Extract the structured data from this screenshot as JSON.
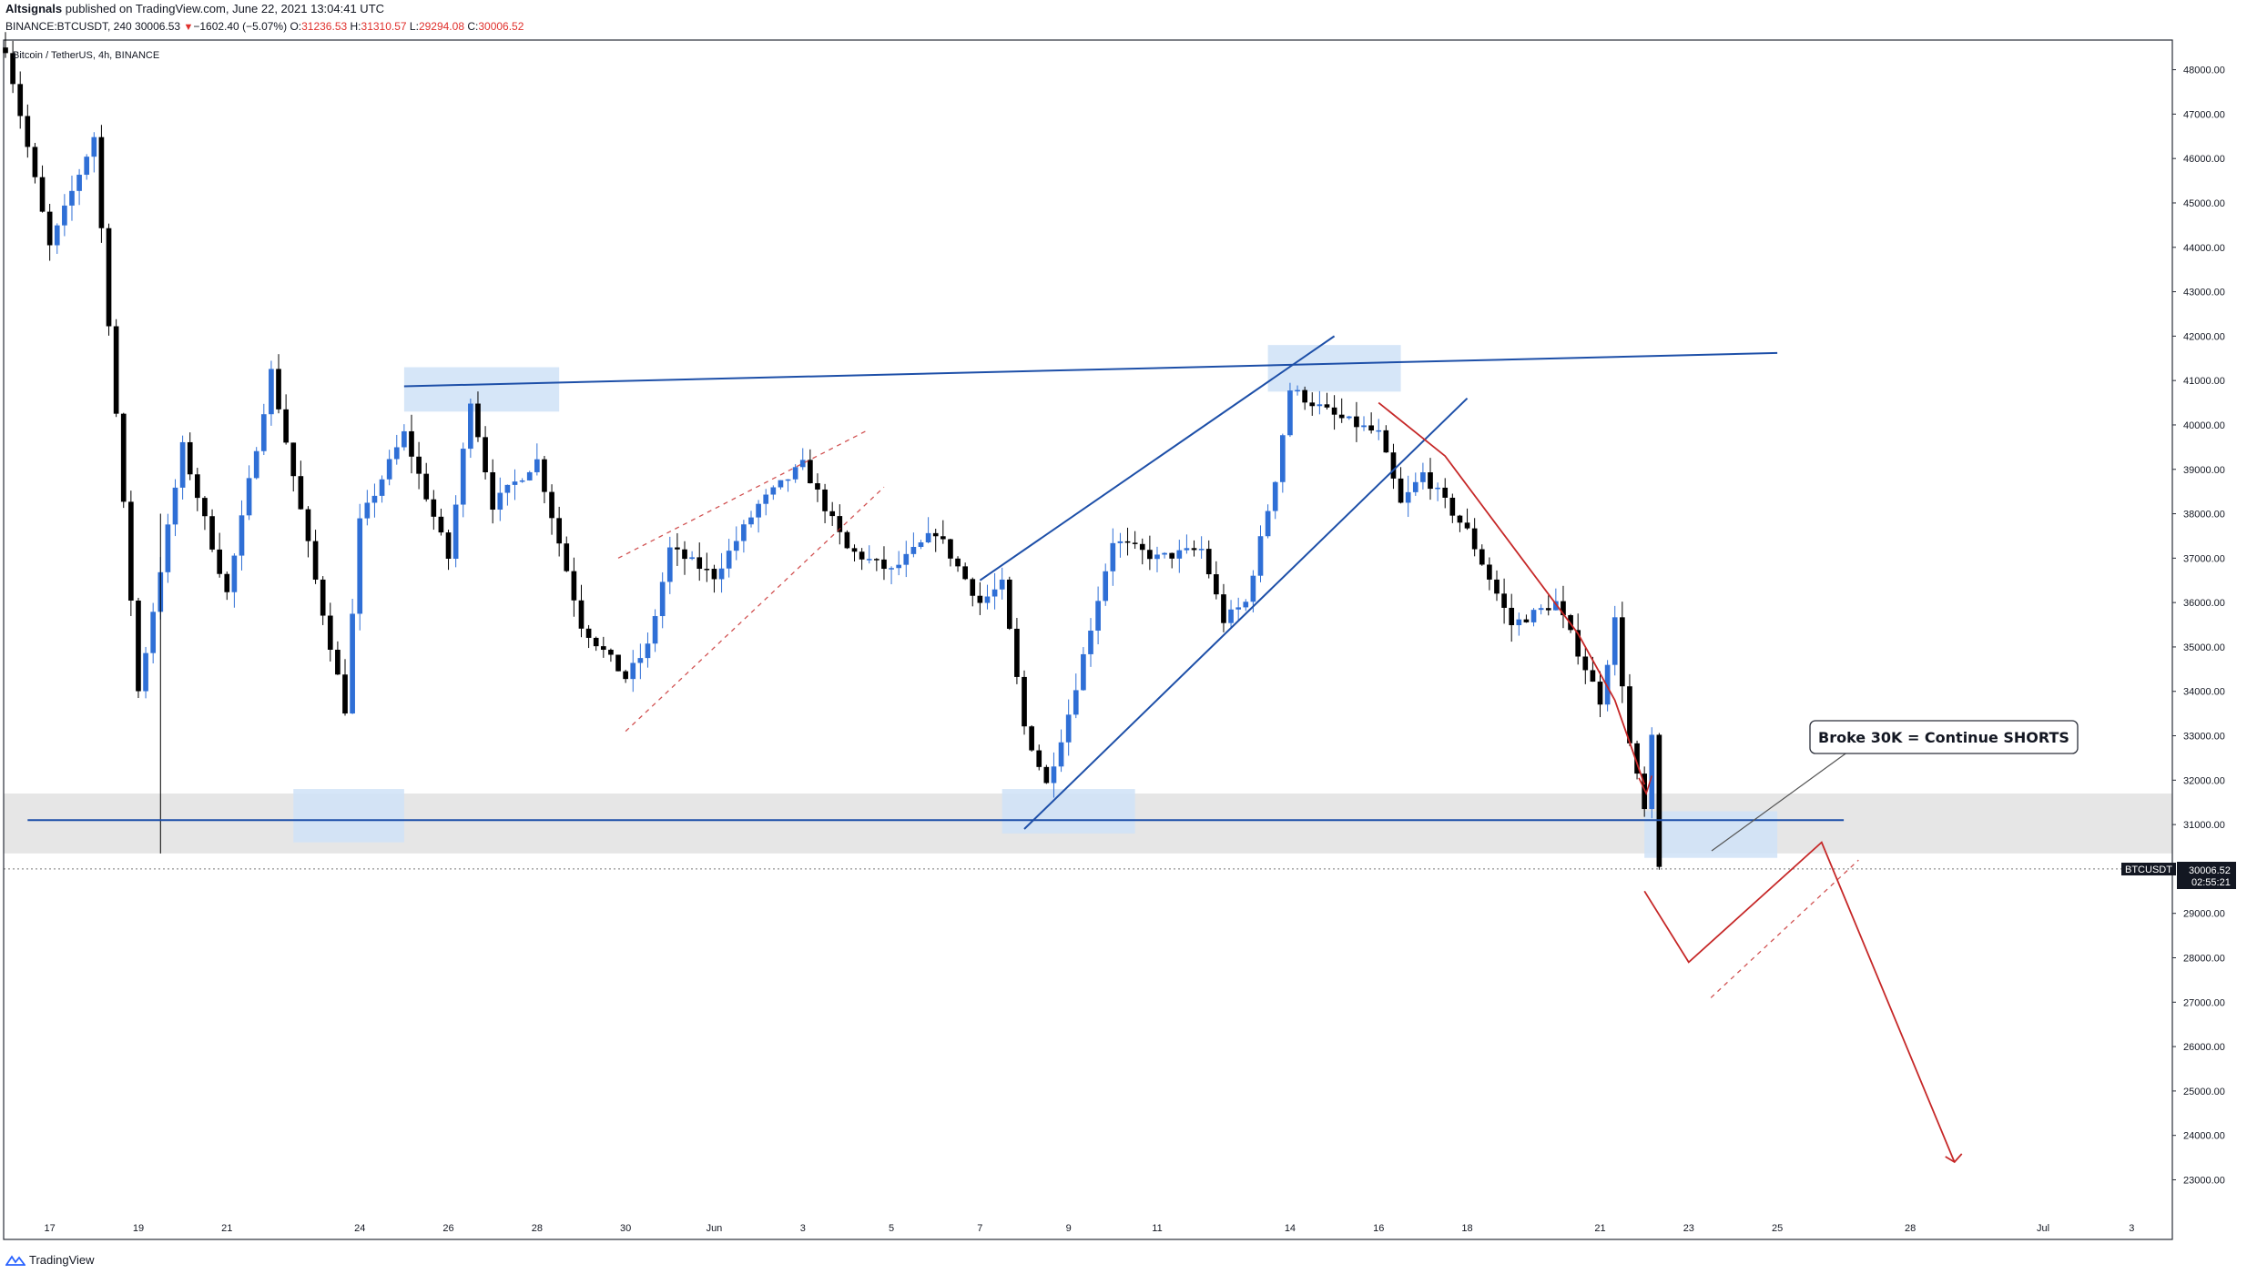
{
  "header": {
    "author": "Altsignals",
    "published_text": "published on TradingView.com, June 22, 2021 13:04:41 UTC",
    "symbol_line": "BINANCE:BTCUSDT, 240",
    "last_price": "30006.53",
    "change_arrow": "▼",
    "change": "−1602.40 (−5.07%)",
    "o_label": "O:",
    "o_value": "31236.53",
    "h_label": "H:",
    "h_value": "31310.57",
    "l_label": "L:",
    "l_value": "29294.08",
    "c_label": "C:",
    "c_value": "30006.52"
  },
  "footer": {
    "brand": "TradingView"
  },
  "colors": {
    "up_candle": "#2f6fd6",
    "down_candle": "#000000",
    "trendline": "#1d4fa8",
    "projection": "#c62828",
    "zone_fill": "#cfe2f7",
    "support_band": "#e6e6e6"
  },
  "chart_data": {
    "type": "candlestick",
    "title": "Bitcoin / TetherUS, 4h, BINANCE",
    "y_ticks": [
      "48000.00",
      "47000.00",
      "46000.00",
      "45000.00",
      "44000.00",
      "43000.00",
      "42000.00",
      "41000.00",
      "40000.00",
      "39000.00",
      "38000.00",
      "37000.00",
      "36000.00",
      "35000.00",
      "34000.00",
      "33000.00",
      "32000.00",
      "31000.00",
      "29000.00",
      "28000.00",
      "27000.00",
      "26000.00",
      "25000.00",
      "24000.00",
      "23000.00"
    ],
    "ylim": [
      22600,
      48750
    ],
    "x_ticks": [
      "17",
      "19",
      "21",
      "24",
      "26",
      "28",
      "30",
      "Jun",
      "3",
      "5",
      "7",
      "9",
      "11",
      "14",
      "16",
      "18",
      "21",
      "23",
      "25",
      "28",
      "Jul",
      "3"
    ],
    "x_range": [
      "May 16",
      "Jul 4"
    ],
    "price_label": {
      "symbol": "BTCUSDT",
      "price": "30006.52",
      "countdown": "02:55:21"
    },
    "annotation": "Broke 30K = Continue SHORTS",
    "support_level": 31100,
    "resistance_line": {
      "from": [
        "May 25",
        40870
      ],
      "to": [
        "Jun 25",
        41620
      ]
    },
    "rising_wedge_upper": {
      "from": [
        "Jun 7",
        36500
      ],
      "to": [
        "Jun 15",
        42000
      ]
    },
    "rising_wedge_lower": {
      "from": [
        "Jun 8",
        30900
      ],
      "to": [
        "Jun 18",
        40600
      ]
    },
    "projection_path": [
      [
        "Jun 22",
        29500
      ],
      [
        "Jun 23",
        27900
      ],
      [
        "Jun 26",
        30600
      ],
      [
        "Jun 29",
        23400
      ]
    ],
    "swing_points": [
      [
        "May 16",
        48500
      ],
      [
        "May 17",
        44000
      ],
      [
        "May 18",
        46500
      ],
      [
        "May 19",
        34000
      ],
      [
        "May 20",
        39500
      ],
      [
        "May 21",
        36200
      ],
      [
        "May 22",
        41200
      ],
      [
        "May 23",
        36500
      ],
      [
        "May 23 16h",
        33600
      ],
      [
        "May 24",
        37800
      ],
      [
        "May 25",
        39800
      ],
      [
        "May 26",
        37000
      ],
      [
        "May 26 12h",
        40600
      ],
      [
        "May 27",
        38200
      ],
      [
        "May 28",
        39200
      ],
      [
        "May 29",
        35500
      ],
      [
        "May 30",
        34300
      ],
      [
        "May 30 12h",
        35000
      ],
      [
        "May 31",
        37200
      ],
      [
        "Jun 1",
        36600
      ],
      [
        "Jun 2",
        38200
      ],
      [
        "Jun 3",
        39100
      ],
      [
        "Jun 4",
        37200
      ],
      [
        "Jun 5",
        36700
      ],
      [
        "Jun 6",
        37600
      ],
      [
        "Jun 7",
        36000
      ],
      [
        "Jun 7 12h",
        36400
      ],
      [
        "Jun 8",
        33200
      ],
      [
        "Jun 8 12h",
        31900
      ],
      [
        "Jun 9",
        33500
      ],
      [
        "Jun 10",
        37400
      ],
      [
        "Jun 11",
        37000
      ],
      [
        "Jun 12",
        37200
      ],
      [
        "Jun 12 12h",
        35600
      ],
      [
        "Jun 13",
        36000
      ],
      [
        "Jun 13 16h",
        38800
      ],
      [
        "Jun 14",
        40800
      ],
      [
        "Jun 15",
        40200
      ],
      [
        "Jun 16",
        39800
      ],
      [
        "Jun 16 12h",
        38200
      ],
      [
        "Jun 17",
        38900
      ],
      [
        "Jun 18",
        37600
      ],
      [
        "Jun 19",
        35500
      ],
      [
        "Jun 20",
        36000
      ],
      [
        "Jun 21",
        33800
      ],
      [
        "Jun 21 8h",
        35600
      ],
      [
        "Jun 21 16h",
        32800
      ],
      [
        "Jun 22",
        31300
      ],
      [
        "Jun 22 4h",
        32900
      ],
      [
        "Jun 22 8h",
        30006
      ]
    ]
  }
}
